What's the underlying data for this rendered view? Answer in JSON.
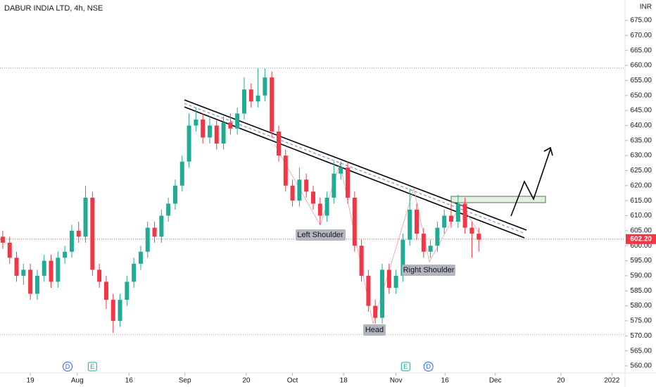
{
  "chart_data": {
    "type": "candlestick",
    "title": "DABUR INDIA LTD, 4h, NSE",
    "currency": "INR",
    "x": [
      0,
      1,
      2,
      3,
      4,
      5,
      6,
      7,
      8,
      9,
      10,
      11,
      12,
      13,
      14,
      15,
      16,
      17,
      18,
      19,
      20,
      21,
      22,
      23,
      24,
      25,
      26,
      27,
      28,
      29,
      30,
      31,
      32,
      33,
      34,
      35,
      36,
      37,
      38,
      39,
      40,
      41,
      42,
      43,
      44,
      45,
      46,
      47,
      48,
      49,
      50,
      51,
      52,
      53,
      54,
      55,
      56,
      57,
      58,
      59,
      60,
      61,
      62,
      63,
      64,
      65,
      66,
      67,
      68,
      69
    ],
    "open": [
      603,
      601,
      596,
      590,
      592,
      584,
      590,
      595,
      588,
      596,
      598,
      605,
      603,
      616,
      592,
      588,
      582,
      575,
      582,
      588,
      594,
      598,
      606,
      603,
      610,
      614,
      620,
      628,
      640,
      642,
      636,
      640,
      634,
      641,
      639,
      644,
      652,
      648,
      650,
      656,
      638,
      630,
      620,
      615,
      622,
      618,
      614,
      610,
      616,
      624,
      626,
      616,
      600,
      590,
      580,
      576,
      592,
      586,
      590,
      602,
      612,
      604,
      598,
      600,
      606,
      610,
      608,
      614,
      606,
      604
    ],
    "high": [
      605,
      603,
      598,
      594,
      594,
      592,
      597,
      597,
      598,
      600,
      607,
      608,
      620,
      618,
      594,
      590,
      584,
      584,
      590,
      596,
      600,
      608,
      608,
      612,
      616,
      622,
      630,
      644,
      646,
      644,
      643,
      642,
      643,
      644,
      646,
      656,
      654,
      659,
      659,
      658,
      640,
      632,
      622,
      626,
      624,
      620,
      616,
      618,
      628,
      628,
      628,
      618,
      602,
      592,
      582,
      594,
      594,
      592,
      604,
      619,
      614,
      606,
      602,
      608,
      612,
      614,
      617,
      616,
      608,
      606
    ],
    "low": [
      599,
      594,
      588,
      587,
      582,
      582,
      588,
      586,
      586,
      594,
      596,
      601,
      601,
      590,
      586,
      579,
      571,
      573,
      580,
      586,
      592,
      596,
      601,
      601,
      608,
      612,
      618,
      626,
      638,
      634,
      634,
      632,
      632,
      637,
      637,
      642,
      646,
      646,
      648,
      636,
      628,
      618,
      613,
      613,
      616,
      612,
      607,
      608,
      614,
      622,
      614,
      598,
      588,
      578,
      574,
      574,
      584,
      584,
      588,
      600,
      602,
      596,
      596,
      598,
      604,
      606,
      606,
      604,
      596,
      598
    ],
    "close": [
      601,
      596,
      590,
      592,
      584,
      590,
      595,
      588,
      596,
      598,
      605,
      603,
      616,
      592,
      588,
      582,
      575,
      582,
      588,
      594,
      598,
      606,
      603,
      610,
      614,
      620,
      628,
      640,
      642,
      636,
      640,
      634,
      641,
      639,
      644,
      652,
      648,
      650,
      656,
      638,
      630,
      620,
      615,
      622,
      618,
      614,
      610,
      616,
      624,
      626,
      616,
      600,
      590,
      580,
      576,
      592,
      586,
      590,
      602,
      612,
      604,
      598,
      600,
      606,
      610,
      608,
      614,
      606,
      604,
      602
    ],
    "up_color": "#22ab94",
    "down_color": "#f23645",
    "xlim": [
      -0.4,
      90.2
    ],
    "xticks": [
      {
        "value": 4.0,
        "label": "19"
      },
      {
        "value": 10.8,
        "label": "Aug"
      },
      {
        "value": 18.3,
        "label": "16"
      },
      {
        "value": 26.4,
        "label": "Sep"
      },
      {
        "value": 35.3,
        "label": "20"
      },
      {
        "value": 42.0,
        "label": "Oct"
      },
      {
        "value": 49.4,
        "label": "18"
      },
      {
        "value": 57.0,
        "label": "Nov"
      },
      {
        "value": 64.1,
        "label": "16"
      },
      {
        "value": 71.4,
        "label": "Dec"
      },
      {
        "value": 80.9,
        "label": "20"
      },
      {
        "value": 88.3,
        "label": "2022"
      }
    ],
    "ylim": [
      557.66,
      681.78
    ],
    "yticks": [
      {
        "value": 560,
        "label": "560.00"
      },
      {
        "value": 565,
        "label": "565.00"
      },
      {
        "value": 570,
        "label": "570.00"
      },
      {
        "value": 575,
        "label": "575.00"
      },
      {
        "value": 580,
        "label": "580.00"
      },
      {
        "value": 585,
        "label": "585.00"
      },
      {
        "value": 590,
        "label": "590.00"
      },
      {
        "value": 595,
        "label": "595.00"
      },
      {
        "value": 600,
        "label": "600.00"
      },
      {
        "value": 605,
        "label": "605.00"
      },
      {
        "value": 610,
        "label": "610.00"
      },
      {
        "value": 615,
        "label": "615.00"
      },
      {
        "value": 620,
        "label": "620.00"
      },
      {
        "value": 625,
        "label": "625.00"
      },
      {
        "value": 630,
        "label": "630.00"
      },
      {
        "value": 635,
        "label": "635.00"
      },
      {
        "value": 640,
        "label": "640.00"
      },
      {
        "value": 645,
        "label": "645.00"
      },
      {
        "value": 650,
        "label": "650.00"
      },
      {
        "value": 655,
        "label": "655.00"
      },
      {
        "value": 660,
        "label": "660.00"
      },
      {
        "value": 665,
        "label": "665.00"
      },
      {
        "value": 670,
        "label": "670.00"
      },
      {
        "value": 675,
        "label": "675.00"
      }
    ],
    "last_price": {
      "value": 602.2,
      "label": "602.20"
    },
    "reference_lines": [
      659.2,
      570.5
    ],
    "events": [
      {
        "x": 9.4,
        "label": "D"
      },
      {
        "x": 13.0,
        "label": "E"
      },
      {
        "x": 58.4,
        "label": "E"
      },
      {
        "x": 61.7,
        "label": "D"
      }
    ],
    "annotations": [
      "Left Shoulder",
      "Head",
      "Right Shoulder"
    ]
  }
}
